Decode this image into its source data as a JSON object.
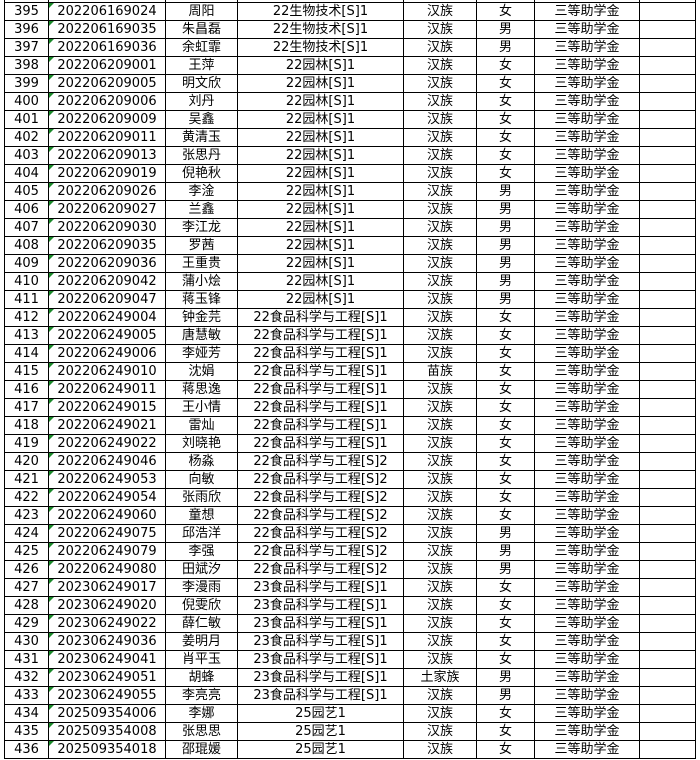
{
  "colors": {
    "grid": "#000000",
    "text_indicator": "#1a8a2a",
    "background": "#ffffff"
  },
  "rows": [
    {
      "no": "395",
      "id": "202206169024",
      "name": "周阳",
      "class": "22生物技术[S]1",
      "ethnicity": "汉族",
      "gender": "女",
      "award": "三等助学金"
    },
    {
      "no": "396",
      "id": "202206169035",
      "name": "朱昌磊",
      "class": "22生物技术[S]1",
      "ethnicity": "汉族",
      "gender": "男",
      "award": "三等助学金"
    },
    {
      "no": "397",
      "id": "202206169036",
      "name": "余虹霏",
      "class": "22生物技术[S]1",
      "ethnicity": "汉族",
      "gender": "男",
      "award": "三等助学金"
    },
    {
      "no": "398",
      "id": "202206209001",
      "name": "王萍",
      "class": "22园林[S]1",
      "ethnicity": "汉族",
      "gender": "女",
      "award": "三等助学金"
    },
    {
      "no": "399",
      "id": "202206209005",
      "name": "明文欣",
      "class": "22园林[S]1",
      "ethnicity": "汉族",
      "gender": "女",
      "award": "三等助学金"
    },
    {
      "no": "400",
      "id": "202206209006",
      "name": "刘丹",
      "class": "22园林[S]1",
      "ethnicity": "汉族",
      "gender": "女",
      "award": "三等助学金"
    },
    {
      "no": "401",
      "id": "202206209009",
      "name": "吴鑫",
      "class": "22园林[S]1",
      "ethnicity": "汉族",
      "gender": "女",
      "award": "三等助学金"
    },
    {
      "no": "402",
      "id": "202206209011",
      "name": "黄清玉",
      "class": "22园林[S]1",
      "ethnicity": "汉族",
      "gender": "女",
      "award": "三等助学金"
    },
    {
      "no": "403",
      "id": "202206209013",
      "name": "张思丹",
      "class": "22园林[S]1",
      "ethnicity": "汉族",
      "gender": "女",
      "award": "三等助学金"
    },
    {
      "no": "404",
      "id": "202206209019",
      "name": "倪艳秋",
      "class": "22园林[S]1",
      "ethnicity": "汉族",
      "gender": "女",
      "award": "三等助学金"
    },
    {
      "no": "405",
      "id": "202206209026",
      "name": "李淦",
      "class": "22园林[S]1",
      "ethnicity": "汉族",
      "gender": "男",
      "award": "三等助学金"
    },
    {
      "no": "406",
      "id": "202206209027",
      "name": "兰鑫",
      "class": "22园林[S]1",
      "ethnicity": "汉族",
      "gender": "男",
      "award": "三等助学金"
    },
    {
      "no": "407",
      "id": "202206209030",
      "name": "李江龙",
      "class": "22园林[S]1",
      "ethnicity": "汉族",
      "gender": "男",
      "award": "三等助学金"
    },
    {
      "no": "408",
      "id": "202206209035",
      "name": "罗茜",
      "class": "22园林[S]1",
      "ethnicity": "汉族",
      "gender": "男",
      "award": "三等助学金"
    },
    {
      "no": "409",
      "id": "202206209036",
      "name": "王重贵",
      "class": "22园林[S]1",
      "ethnicity": "汉族",
      "gender": "男",
      "award": "三等助学金"
    },
    {
      "no": "410",
      "id": "202206209042",
      "name": "蒲小烩",
      "class": "22园林[S]1",
      "ethnicity": "汉族",
      "gender": "男",
      "award": "三等助学金"
    },
    {
      "no": "411",
      "id": "202206209047",
      "name": "蒋玉锋",
      "class": "22园林[S]1",
      "ethnicity": "汉族",
      "gender": "男",
      "award": "三等助学金"
    },
    {
      "no": "412",
      "id": "202206249004",
      "name": "钟金芫",
      "class": "22食品科学与工程[S]1",
      "ethnicity": "汉族",
      "gender": "女",
      "award": "三等助学金"
    },
    {
      "no": "413",
      "id": "202206249005",
      "name": "唐慧敏",
      "class": "22食品科学与工程[S]1",
      "ethnicity": "汉族",
      "gender": "女",
      "award": "三等助学金"
    },
    {
      "no": "414",
      "id": "202206249006",
      "name": "李娅芳",
      "class": "22食品科学与工程[S]1",
      "ethnicity": "汉族",
      "gender": "女",
      "award": "三等助学金"
    },
    {
      "no": "415",
      "id": "202206249010",
      "name": "沈娟",
      "class": "22食品科学与工程[S]1",
      "ethnicity": "苗族",
      "gender": "女",
      "award": "三等助学金"
    },
    {
      "no": "416",
      "id": "202206249011",
      "name": "蒋思逸",
      "class": "22食品科学与工程[S]1",
      "ethnicity": "汉族",
      "gender": "女",
      "award": "三等助学金"
    },
    {
      "no": "417",
      "id": "202206249015",
      "name": "王小情",
      "class": "22食品科学与工程[S]1",
      "ethnicity": "汉族",
      "gender": "女",
      "award": "三等助学金"
    },
    {
      "no": "418",
      "id": "202206249021",
      "name": "雷灿",
      "class": "22食品科学与工程[S]1",
      "ethnicity": "汉族",
      "gender": "女",
      "award": "三等助学金"
    },
    {
      "no": "419",
      "id": "202206249022",
      "name": "刘晓艳",
      "class": "22食品科学与工程[S]1",
      "ethnicity": "汉族",
      "gender": "女",
      "award": "三等助学金"
    },
    {
      "no": "420",
      "id": "202206249046",
      "name": "杨淼",
      "class": "22食品科学与工程[S]2",
      "ethnicity": "汉族",
      "gender": "女",
      "award": "三等助学金"
    },
    {
      "no": "421",
      "id": "202206249053",
      "name": "向敏",
      "class": "22食品科学与工程[S]2",
      "ethnicity": "汉族",
      "gender": "女",
      "award": "三等助学金"
    },
    {
      "no": "422",
      "id": "202206249054",
      "name": "张雨欣",
      "class": "22食品科学与工程[S]2",
      "ethnicity": "汉族",
      "gender": "女",
      "award": "三等助学金"
    },
    {
      "no": "423",
      "id": "202206249060",
      "name": "童想",
      "class": "22食品科学与工程[S]2",
      "ethnicity": "汉族",
      "gender": "女",
      "award": "三等助学金"
    },
    {
      "no": "424",
      "id": "202206249075",
      "name": "邱浩洋",
      "class": "22食品科学与工程[S]2",
      "ethnicity": "汉族",
      "gender": "男",
      "award": "三等助学金"
    },
    {
      "no": "425",
      "id": "202206249079",
      "name": "李强",
      "class": "22食品科学与工程[S]2",
      "ethnicity": "汉族",
      "gender": "男",
      "award": "三等助学金"
    },
    {
      "no": "426",
      "id": "202206249080",
      "name": "田斌汐",
      "class": "22食品科学与工程[S]2",
      "ethnicity": "汉族",
      "gender": "男",
      "award": "三等助学金"
    },
    {
      "no": "427",
      "id": "202306249017",
      "name": "李漫雨",
      "class": "23食品科学与工程[S]1",
      "ethnicity": "汉族",
      "gender": "女",
      "award": "三等助学金"
    },
    {
      "no": "428",
      "id": "202306249020",
      "name": "倪雯欣",
      "class": "23食品科学与工程[S]1",
      "ethnicity": "汉族",
      "gender": "女",
      "award": "三等助学金"
    },
    {
      "no": "429",
      "id": "202306249022",
      "name": "薛仁敏",
      "class": "23食品科学与工程[S]1",
      "ethnicity": "汉族",
      "gender": "女",
      "award": "三等助学金"
    },
    {
      "no": "430",
      "id": "202306249036",
      "name": "姜明月",
      "class": "23食品科学与工程[S]1",
      "ethnicity": "汉族",
      "gender": "女",
      "award": "三等助学金"
    },
    {
      "no": "431",
      "id": "202306249041",
      "name": "肖平玉",
      "class": "23食品科学与工程[S]1",
      "ethnicity": "汉族",
      "gender": "女",
      "award": "三等助学金"
    },
    {
      "no": "432",
      "id": "202306249051",
      "name": "胡蜂",
      "class": "23食品科学与工程[S]1",
      "ethnicity": "土家族",
      "gender": "男",
      "award": "三等助学金"
    },
    {
      "no": "433",
      "id": "202306249055",
      "name": "李亮亮",
      "class": "23食品科学与工程[S]1",
      "ethnicity": "汉族",
      "gender": "男",
      "award": "三等助学金"
    },
    {
      "no": "434",
      "id": "202509354006",
      "name": "李娜",
      "class": "25园艺1",
      "ethnicity": "汉族",
      "gender": "女",
      "award": "三等助学金"
    },
    {
      "no": "435",
      "id": "202509354008",
      "name": "张思思",
      "class": "25园艺1",
      "ethnicity": "汉族",
      "gender": "女",
      "award": "三等助学金"
    },
    {
      "no": "436",
      "id": "202509354018",
      "name": "邵琨媛",
      "class": "25园艺1",
      "ethnicity": "汉族",
      "gender": "女",
      "award": "三等助学金"
    }
  ]
}
